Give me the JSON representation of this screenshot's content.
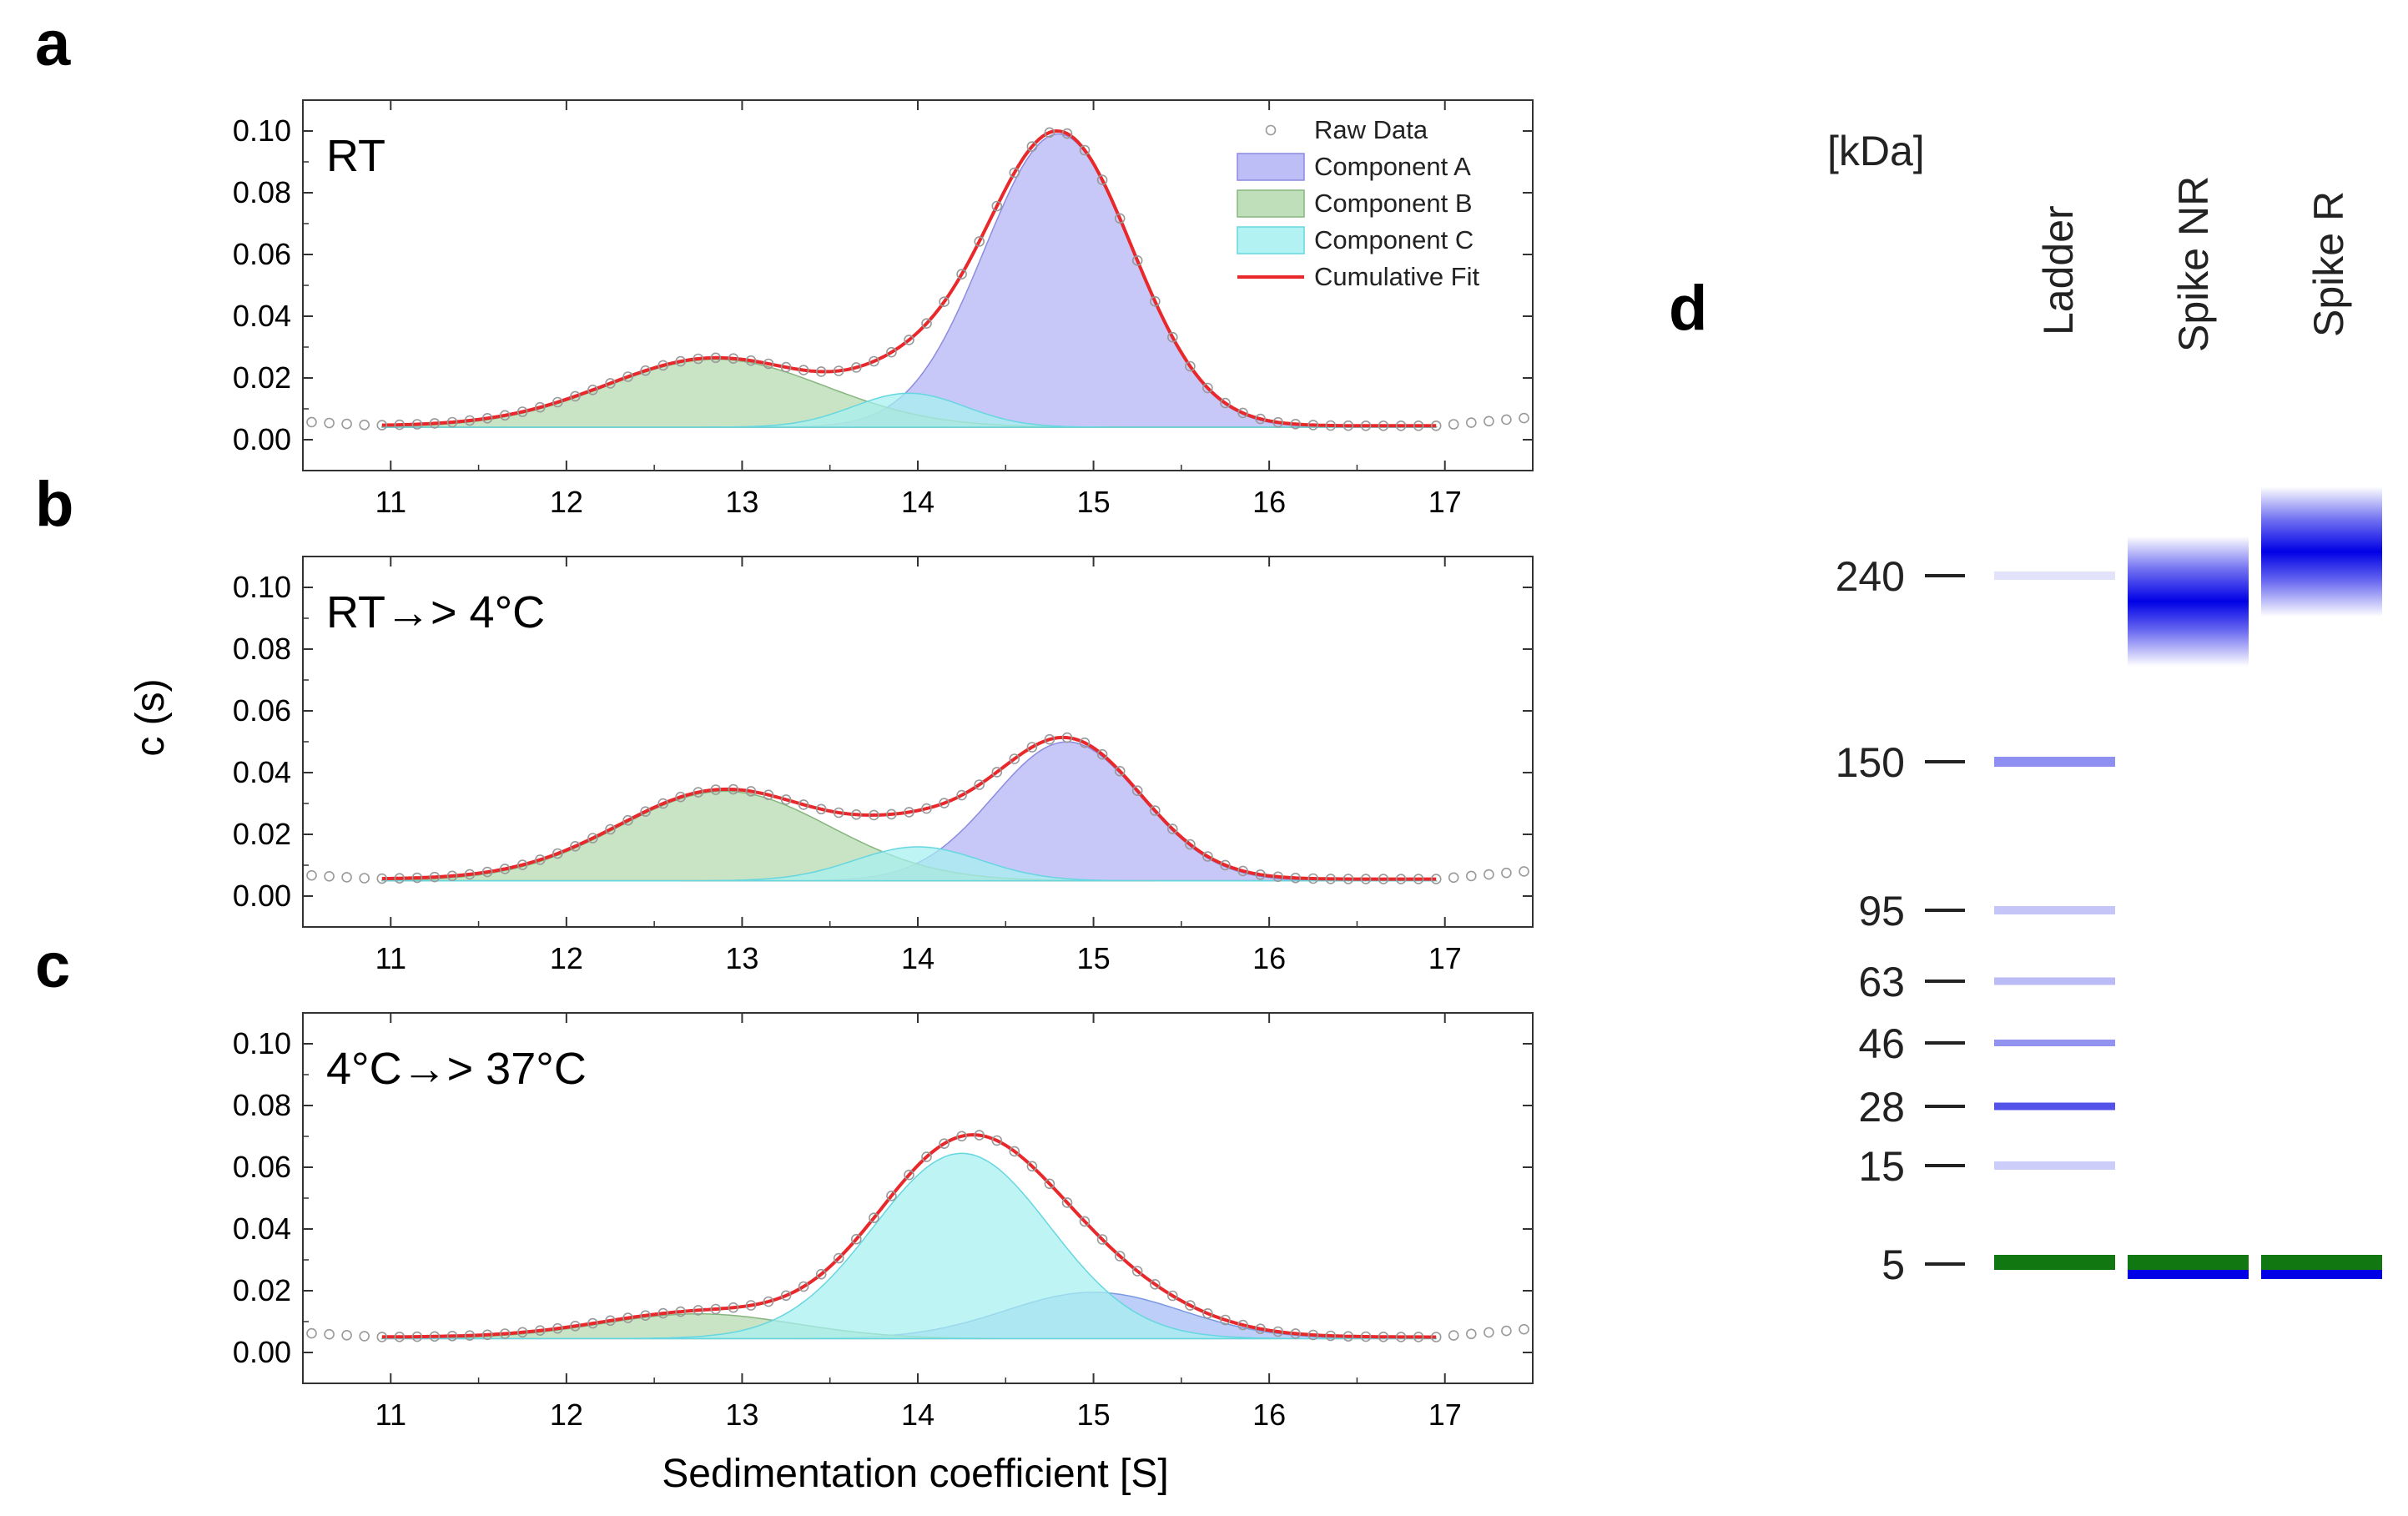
{
  "figure": {
    "panel_letters": [
      "a",
      "b",
      "c",
      "d"
    ],
    "y_axis_title": "c (s)",
    "x_axis_title": "Sedimentation coefficient [S]"
  },
  "chart_data": [
    {
      "type": "area",
      "panel": "a",
      "condition": "RT",
      "xlabel": "Sedimentation coefficient [S]",
      "ylabel": "c (s)",
      "xlim": [
        10.5,
        17.5
      ],
      "ylim": [
        -0.01,
        0.11
      ],
      "x_ticks": [
        11,
        12,
        13,
        14,
        15,
        16,
        17
      ],
      "y_ticks": [
        "0.00",
        "0.02",
        "0.04",
        "0.06",
        "0.08",
        "0.10"
      ],
      "baseline": 0.0045,
      "components": [
        {
          "name": "Component A",
          "color": "#b3b3f5",
          "edge": "#8c8ce0",
          "center": 14.8,
          "sigma": 0.42,
          "height": 0.095
        },
        {
          "name": "Component B",
          "color": "#b3d9ad",
          "edge": "#86b57e",
          "center": 12.85,
          "sigma": 0.62,
          "height": 0.022
        },
        {
          "name": "Component C",
          "color": "#a6f0f0",
          "edge": "#66d6e0",
          "center": 13.95,
          "sigma": 0.32,
          "height": 0.011
        }
      ],
      "legend": {
        "position": "top-right",
        "show": true
      },
      "legend_entries": [
        "Raw Data",
        "Component A",
        "Component B",
        "Component C",
        "Cumulative Fit"
      ],
      "fit_color": "#e8282b",
      "raw_color": "#999999"
    },
    {
      "type": "area",
      "panel": "b",
      "condition": "RT→> 4°C",
      "xlabel": "Sedimentation coefficient [S]",
      "ylabel": "c (s)",
      "xlim": [
        10.5,
        17.5
      ],
      "ylim": [
        -0.01,
        0.11
      ],
      "x_ticks": [
        11,
        12,
        13,
        14,
        15,
        16,
        17
      ],
      "y_ticks": [
        "0.00",
        "0.02",
        "0.04",
        "0.06",
        "0.08",
        "0.10"
      ],
      "baseline": 0.0055,
      "components": [
        {
          "name": "Component A",
          "color": "#b3b3f5",
          "edge": "#8c8ce0",
          "center": 14.85,
          "sigma": 0.42,
          "height": 0.045
        },
        {
          "name": "Component B",
          "color": "#b3d9ad",
          "edge": "#86b57e",
          "center": 12.9,
          "sigma": 0.6,
          "height": 0.029
        },
        {
          "name": "Component C",
          "color": "#a6f0f0",
          "edge": "#66d6e0",
          "center": 14.0,
          "sigma": 0.36,
          "height": 0.011
        }
      ],
      "legend": {
        "show": false
      },
      "fit_color": "#e8282b",
      "raw_color": "#999999"
    },
    {
      "type": "area",
      "panel": "c",
      "condition": "4°C→> 37°C",
      "xlabel": "Sedimentation coefficient [S]",
      "ylabel": "c (s)",
      "xlim": [
        10.5,
        17.5
      ],
      "ylim": [
        -0.01,
        0.11
      ],
      "x_ticks": [
        11,
        12,
        13,
        14,
        15,
        16,
        17
      ],
      "y_ticks": [
        "0.00",
        "0.02",
        "0.04",
        "0.06",
        "0.08",
        "0.10"
      ],
      "baseline": 0.005,
      "components": [
        {
          "name": "Component A",
          "color": "#a3bdf5",
          "edge": "#7a9ae0",
          "center": 15.0,
          "sigma": 0.5,
          "height": 0.015
        },
        {
          "name": "Component B",
          "color": "#b3d9ad",
          "edge": "#86b57e",
          "center": 12.75,
          "sigma": 0.55,
          "height": 0.008
        },
        {
          "name": "Component C",
          "color": "#a6f0f0",
          "edge": "#66d6e0",
          "center": 14.25,
          "sigma": 0.5,
          "height": 0.06
        }
      ],
      "legend": {
        "show": false
      },
      "fit_color": "#e8282b",
      "raw_color": "#999999"
    }
  ],
  "gel": {
    "unit_label": "[kDa]",
    "lanes": [
      "Ladder",
      "Spike NR",
      "Spike R"
    ],
    "markers": [
      {
        "label": "240",
        "kda": 240
      },
      {
        "label": "150",
        "kda": 150
      },
      {
        "label": "95",
        "kda": 95
      },
      {
        "label": "63",
        "kda": 63
      },
      {
        "label": "46",
        "kda": 46
      },
      {
        "label": "28",
        "kda": 28
      },
      {
        "label": "15",
        "kda": 15
      },
      {
        "label": "5",
        "kda": 5
      }
    ],
    "ladder_band_color": "#4a4ae8",
    "sample_band_color": "#0000e6",
    "lower_marker_color": "#117711",
    "samples": [
      {
        "lane": "Spike NR",
        "band_kda": 225
      },
      {
        "lane": "Spike R",
        "band_kda": 255
      }
    ]
  }
}
